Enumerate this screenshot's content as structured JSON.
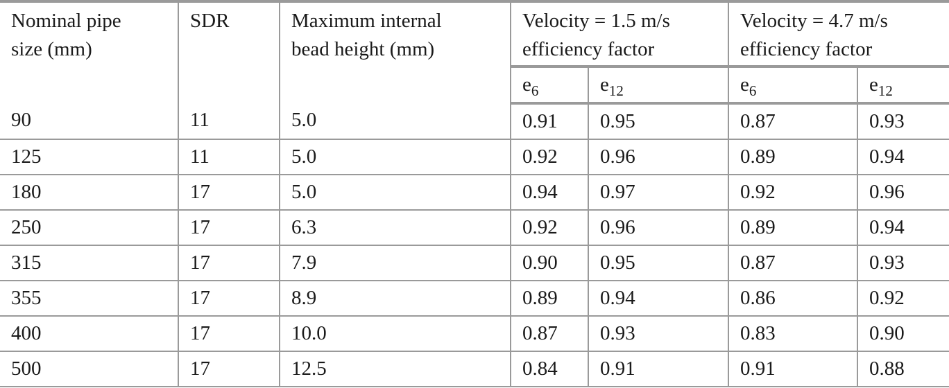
{
  "table": {
    "headers": {
      "nominal_size": "Nominal pipe size (mm)",
      "nominal_size_line1": "Nominal pipe",
      "nominal_size_line2": "size (mm)",
      "sdr": "SDR",
      "bead_height_line1": "Maximum internal",
      "bead_height_line2": "bead height (mm)",
      "group1_line1": "Velocity = 1.5 m/s",
      "group1_line2": "efficiency factor",
      "group2_line1": "Velocity = 4.7 m/s",
      "group2_line2": "efficiency factor",
      "sub": [
        {
          "base": "e",
          "subscript": "6"
        },
        {
          "base": "e",
          "subscript": "12"
        },
        {
          "base": "e",
          "subscript": "6"
        },
        {
          "base": "e",
          "subscript": "12"
        }
      ]
    },
    "rows": [
      {
        "size": "90",
        "sdr": "11",
        "bead": "5.0",
        "v15_e6": "0.91",
        "v15_e12": "0.95",
        "v47_e6": "0.87",
        "v47_e12": "0.93"
      },
      {
        "size": "125",
        "sdr": "11",
        "bead": "5.0",
        "v15_e6": "0.92",
        "v15_e12": "0.96",
        "v47_e6": "0.89",
        "v47_e12": "0.94"
      },
      {
        "size": "180",
        "sdr": "17",
        "bead": "5.0",
        "v15_e6": "0.94",
        "v15_e12": "0.97",
        "v47_e6": "0.92",
        "v47_e12": "0.96"
      },
      {
        "size": "250",
        "sdr": "17",
        "bead": "6.3",
        "v15_e6": "0.92",
        "v15_e12": "0.96",
        "v47_e6": "0.89",
        "v47_e12": "0.94"
      },
      {
        "size": "315",
        "sdr": "17",
        "bead": "7.9",
        "v15_e6": "0.90",
        "v15_e12": "0.95",
        "v47_e6": "0.87",
        "v47_e12": "0.93"
      },
      {
        "size": "355",
        "sdr": "17",
        "bead": "8.9",
        "v15_e6": "0.89",
        "v15_e12": "0.94",
        "v47_e6": "0.86",
        "v47_e12": "0.92"
      },
      {
        "size": "400",
        "sdr": "17",
        "bead": "10.0",
        "v15_e6": "0.87",
        "v15_e12": "0.93",
        "v47_e6": "0.83",
        "v47_e12": "0.90"
      },
      {
        "size": "500",
        "sdr": "17",
        "bead": "12.5",
        "v15_e6": "0.84",
        "v15_e12": "0.91",
        "v47_e6": "0.91",
        "v47_e12": "0.88"
      }
    ]
  },
  "colors": {
    "rule": "#9a9a9a",
    "text": "#1a1a1a",
    "background": "#ffffff"
  }
}
